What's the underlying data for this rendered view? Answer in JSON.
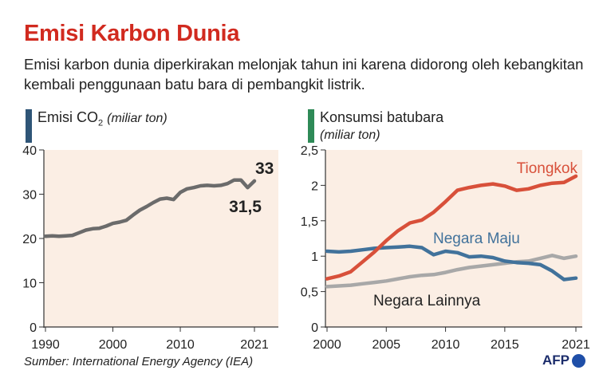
{
  "title": "Emisi Karbon Dunia",
  "subtitle": "Emisi karbon dunia diperkirakan melonjak tahun ini karena didorong oleh kebangkitan kembali penggunaan batu bara di pembangkit listrik.",
  "source": "Sumber: International Energy Agency (IEA)",
  "logo": "AFP",
  "colors": {
    "title": "#d12a1f",
    "panel_bg": "#fbeee4",
    "co2_accent": "#2f5577",
    "coal_accent": "#2e8a57",
    "china": "#d8503a",
    "developed": "#41729b",
    "others": "#a8a8a8",
    "co2_line": "#6b6b6b"
  },
  "chart_data": [
    {
      "type": "line",
      "title_main": "Emisi CO",
      "title_sub": "2",
      "title_unit": "(miliar ton)",
      "xlim": [
        1990,
        2021
      ],
      "ylim": [
        0,
        40
      ],
      "xticks": [
        "1990",
        "2000",
        "2010",
        "2021"
      ],
      "yticks": [
        "0",
        "10",
        "20",
        "30",
        "40"
      ],
      "grid": false,
      "series": [
        {
          "x": [
            1990,
            1991,
            1992,
            1993,
            1994,
            1995,
            1996,
            1997,
            1998,
            1999,
            2000,
            2001,
            2002,
            2003,
            2004,
            2005,
            2006,
            2007,
            2008,
            2009,
            2010,
            2011,
            2012,
            2013,
            2014,
            2015,
            2016,
            2017,
            2018,
            2019,
            2020,
            2021
          ],
          "values": [
            20.5,
            20.6,
            20.5,
            20.6,
            20.7,
            21.3,
            21.9,
            22.2,
            22.3,
            22.8,
            23.4,
            23.7,
            24.1,
            25.3,
            26.4,
            27.2,
            28.1,
            28.9,
            29.1,
            28.8,
            30.4,
            31.2,
            31.5,
            31.9,
            32.0,
            31.9,
            32.0,
            32.4,
            33.2,
            33.2,
            31.5,
            33.0
          ]
        }
      ],
      "annotations": [
        "33",
        "31,5"
      ]
    },
    {
      "type": "line",
      "title_main": "Konsumsi batubara",
      "title_unit": "(miliar ton)",
      "xlim": [
        2000,
        2021
      ],
      "ylim": [
        0,
        2.5
      ],
      "xticks": [
        "2000",
        "2005",
        "2010",
        "2015",
        "2021"
      ],
      "yticks": [
        "0",
        "0,5",
        "1",
        "1,5",
        "2",
        "2,5"
      ],
      "grid": false,
      "series": [
        {
          "name": "Tiongkok",
          "x": [
            2000,
            2001,
            2002,
            2003,
            2004,
            2005,
            2006,
            2007,
            2008,
            2009,
            2010,
            2011,
            2012,
            2013,
            2014,
            2015,
            2016,
            2017,
            2018,
            2019,
            2020,
            2021
          ],
          "values": [
            0.68,
            0.72,
            0.78,
            0.92,
            1.06,
            1.22,
            1.36,
            1.47,
            1.51,
            1.62,
            1.77,
            1.93,
            1.97,
            2.0,
            2.02,
            1.99,
            1.93,
            1.95,
            2.0,
            2.03,
            2.04,
            2.13
          ]
        },
        {
          "name": "Negara Maju",
          "x": [
            2000,
            2001,
            2002,
            2003,
            2004,
            2005,
            2006,
            2007,
            2008,
            2009,
            2010,
            2011,
            2012,
            2013,
            2014,
            2015,
            2016,
            2017,
            2018,
            2019,
            2020,
            2021
          ],
          "values": [
            1.07,
            1.06,
            1.07,
            1.09,
            1.11,
            1.12,
            1.13,
            1.14,
            1.12,
            1.02,
            1.07,
            1.05,
            0.99,
            1.0,
            0.98,
            0.93,
            0.91,
            0.9,
            0.88,
            0.79,
            0.67,
            0.69
          ]
        },
        {
          "name": "Negara Lainnya",
          "x": [
            2000,
            2001,
            2002,
            2003,
            2004,
            2005,
            2006,
            2007,
            2008,
            2009,
            2010,
            2011,
            2012,
            2013,
            2014,
            2015,
            2016,
            2017,
            2018,
            2019,
            2020,
            2021
          ],
          "values": [
            0.57,
            0.58,
            0.59,
            0.61,
            0.63,
            0.65,
            0.68,
            0.71,
            0.73,
            0.74,
            0.77,
            0.81,
            0.84,
            0.86,
            0.88,
            0.9,
            0.92,
            0.93,
            0.97,
            1.01,
            0.97,
            1.0
          ]
        }
      ]
    }
  ]
}
